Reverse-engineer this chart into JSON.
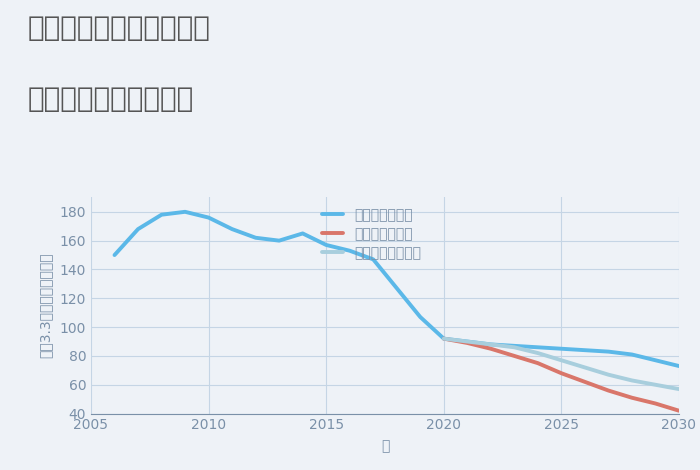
{
  "title_line1": "兵庫県尼崎市武庫の里の",
  "title_line2": "中古戸建ての価格推移",
  "xlabel": "年",
  "ylabel": "坪（3.3㎡）単価（万円）",
  "background_color": "#eef2f7",
  "plot_background_color": "#eef2f7",
  "xlim": [
    2005,
    2030
  ],
  "ylim": [
    40,
    190
  ],
  "yticks": [
    40,
    60,
    80,
    100,
    120,
    140,
    160,
    180
  ],
  "xticks": [
    2005,
    2010,
    2015,
    2020,
    2025,
    2030
  ],
  "good_scenario": {
    "label": "グッドシナリオ",
    "color": "#5bb8e8",
    "linewidth": 2.8,
    "x": [
      2006,
      2007,
      2008,
      2009,
      2010,
      2011,
      2012,
      2013,
      2014,
      2015,
      2016,
      2017,
      2018,
      2019,
      2020,
      2021,
      2022,
      2023,
      2024,
      2025,
      2026,
      2027,
      2028,
      2029,
      2030
    ],
    "y": [
      150,
      168,
      178,
      180,
      176,
      168,
      162,
      160,
      165,
      157,
      153,
      147,
      127,
      107,
      92,
      90,
      88,
      87,
      86,
      85,
      84,
      83,
      81,
      77,
      73
    ]
  },
  "bad_scenario": {
    "label": "バッドシナリオ",
    "color": "#d9766a",
    "linewidth": 2.8,
    "x": [
      2020,
      2021,
      2022,
      2023,
      2024,
      2025,
      2026,
      2027,
      2028,
      2029,
      2030
    ],
    "y": [
      92,
      89,
      85,
      80,
      75,
      68,
      62,
      56,
      51,
      47,
      42
    ]
  },
  "normal_scenario": {
    "label": "ノーマルシナリオ",
    "color": "#a8cedd",
    "linewidth": 2.8,
    "x": [
      2020,
      2021,
      2022,
      2023,
      2024,
      2025,
      2026,
      2027,
      2028,
      2029,
      2030
    ],
    "y": [
      92,
      90,
      88,
      86,
      82,
      77,
      72,
      67,
      63,
      60,
      57
    ]
  },
  "grid_color": "#c5d5e5",
  "title_color": "#555555",
  "axis_color": "#7a90a8",
  "tick_color": "#7a90a8",
  "legend_fontsize": 10,
  "title_fontsize": 20,
  "axis_label_fontsize": 10
}
